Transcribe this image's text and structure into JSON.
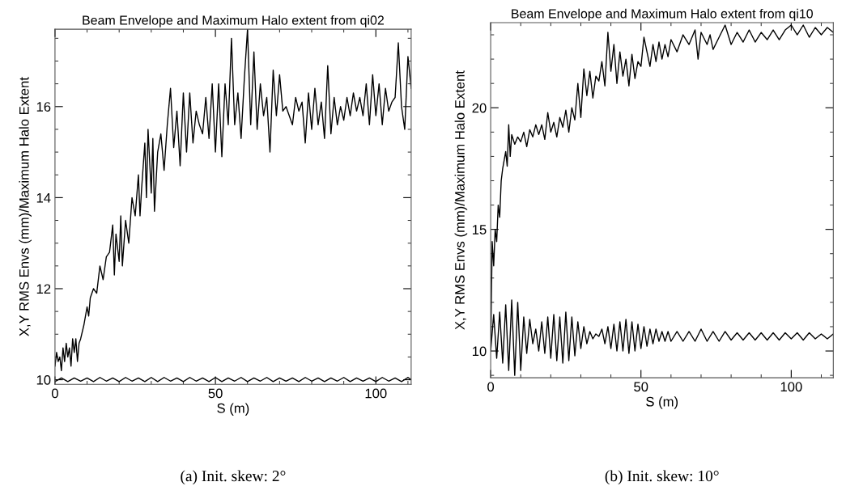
{
  "chart_data": [
    {
      "type": "line",
      "title": "Beam Envelope and Maximum Halo extent from qi02",
      "xlabel": "S (m)",
      "ylabel": "X,Y RMS Envs (mm)/Maximum Halo Extent",
      "xlim": [
        0,
        111
      ],
      "ylim": [
        9.9,
        17.7
      ],
      "xticks": [
        0,
        50,
        100
      ],
      "yticks": [
        10,
        12,
        14,
        16
      ],
      "grid": false,
      "legend": false,
      "marker": "none",
      "line_style": "solid",
      "annotations": [
        "(a) Init. skew: 2°"
      ],
      "series": [
        {
          "color": "#000000",
          "x": [
            0,
            0.5,
            1,
            1.5,
            2,
            2.5,
            3,
            3.5,
            4,
            4.5,
            5,
            5.5,
            6,
            6.5,
            7,
            7.5,
            8,
            9,
            10,
            10.5,
            11,
            12,
            13,
            14,
            15,
            16,
            17,
            18,
            18.5,
            19,
            20,
            20.5,
            21,
            22,
            23,
            24,
            25,
            26,
            26.5,
            27,
            28,
            28.5,
            29,
            30,
            30.5,
            31,
            32,
            33,
            34,
            35,
            36,
            37,
            38,
            39,
            40,
            41,
            42,
            43,
            44,
            45,
            46,
            47,
            48,
            49,
            50,
            51,
            52,
            53,
            54,
            55,
            56,
            57,
            58,
            59,
            60,
            61,
            62,
            63,
            64,
            65,
            66,
            67,
            68,
            69,
            70,
            71,
            72,
            73,
            74,
            75,
            76,
            77,
            78,
            79,
            80,
            81,
            82,
            83,
            84,
            85,
            86,
            87,
            88,
            89,
            90,
            91,
            92,
            93,
            94,
            95,
            96,
            97,
            98,
            99,
            100,
            101,
            102,
            103,
            104,
            105,
            106,
            107,
            108,
            109,
            110,
            111
          ],
          "values": [
            10.3,
            10.6,
            10.4,
            10.5,
            10.2,
            10.7,
            10.4,
            10.8,
            10.5,
            10.7,
            10.3,
            10.9,
            10.6,
            10.9,
            10.4,
            10.8,
            10.9,
            11.2,
            11.6,
            11.4,
            11.8,
            12.0,
            11.9,
            12.5,
            12.2,
            12.7,
            12.8,
            13.4,
            12.3,
            13.2,
            12.6,
            13.6,
            12.5,
            13.5,
            13.0,
            14.0,
            13.6,
            14.5,
            13.6,
            14.2,
            15.2,
            14.0,
            15.5,
            14.1,
            15.3,
            13.7,
            15.0,
            15.4,
            14.6,
            15.6,
            16.4,
            15.1,
            15.9,
            14.7,
            16.3,
            15.0,
            16.3,
            15.2,
            15.9,
            15.6,
            15.4,
            16.2,
            15.3,
            16.5,
            15.0,
            16.5,
            14.9,
            16.5,
            15.6,
            17.5,
            15.6,
            16.3,
            15.3,
            16.6,
            17.7,
            15.6,
            17.2,
            15.5,
            16.5,
            15.8,
            16.2,
            15.0,
            16.8,
            15.8,
            16.7,
            15.9,
            16.0,
            15.8,
            15.6,
            16.2,
            15.9,
            16.1,
            15.2,
            16.3,
            15.5,
            16.4,
            15.6,
            16.1,
            15.3,
            16.9,
            15.4,
            16.2,
            15.6,
            16.0,
            15.7,
            16.2,
            15.8,
            16.3,
            15.9,
            16.2,
            15.8,
            16.5,
            15.6,
            16.7,
            15.8,
            16.5,
            15.6,
            16.4,
            15.9,
            16.1,
            16.2,
            17.4,
            16.0,
            15.5,
            17.1,
            16.4
          ]
        },
        {
          "color": "#000000",
          "x": [
            0,
            2,
            4,
            6,
            8,
            10,
            12,
            14,
            16,
            18,
            20,
            22,
            24,
            26,
            28,
            30,
            32,
            34,
            36,
            38,
            40,
            42,
            44,
            46,
            48,
            50,
            52,
            54,
            56,
            58,
            60,
            62,
            64,
            66,
            68,
            70,
            72,
            74,
            76,
            78,
            80,
            82,
            84,
            86,
            88,
            90,
            92,
            94,
            96,
            98,
            100,
            102,
            104,
            106,
            108,
            110,
            111
          ],
          "values": [
            9.96,
            10.04,
            9.96,
            10.04,
            9.97,
            10.04,
            9.96,
            10.05,
            9.97,
            10.04,
            9.96,
            10.05,
            9.97,
            10.04,
            9.96,
            10.05,
            9.96,
            10.05,
            9.97,
            10.04,
            9.96,
            10.05,
            9.97,
            10.04,
            9.96,
            10.05,
            9.96,
            10.04,
            9.97,
            10.05,
            9.96,
            10.04,
            9.97,
            10.05,
            9.96,
            10.04,
            9.97,
            10.04,
            9.96,
            10.05,
            9.97,
            10.04,
            9.96,
            10.04,
            9.97,
            10.05,
            9.96,
            10.04,
            9.97,
            10.04,
            9.96,
            10.05,
            9.97,
            10.04,
            9.96,
            10.05,
            10.0
          ]
        }
      ]
    },
    {
      "type": "line",
      "title": "Beam Envelope and Maximum Halo extent from qi10",
      "xlabel": "S (m)",
      "ylabel": "X,Y RMS Envs (mm)/Maximum Halo Extent",
      "xlim": [
        0,
        114
      ],
      "ylim": [
        8.9,
        23.5
      ],
      "xticks": [
        0,
        50,
        100
      ],
      "yticks": [
        10,
        15,
        20
      ],
      "grid": false,
      "legend": false,
      "marker": "none",
      "line_style": "solid",
      "annotations": [
        "(b) Init. skew: 10°"
      ],
      "series": [
        {
          "color": "#000000",
          "x": [
            0,
            0.5,
            1,
            1.5,
            2,
            2.5,
            3,
            3.5,
            4,
            5,
            5.5,
            6,
            6.5,
            7,
            8,
            9,
            10,
            11,
            12,
            13,
            14,
            15,
            16,
            17,
            18,
            19,
            20,
            21,
            22,
            23,
            24,
            25,
            26,
            27,
            28,
            29,
            30,
            31,
            32,
            33,
            34,
            35,
            36,
            37,
            38,
            39,
            40,
            41,
            42,
            43,
            44,
            45,
            46,
            47,
            48,
            49,
            50,
            51,
            52,
            53,
            54,
            55,
            56,
            57,
            58,
            59,
            60,
            62,
            64,
            66,
            68,
            69,
            70,
            72,
            73,
            74,
            76,
            78,
            80,
            82,
            84,
            86,
            88,
            90,
            92,
            94,
            96,
            98,
            100,
            102,
            104,
            106,
            108,
            110,
            112,
            114
          ],
          "values": [
            10.0,
            14.5,
            13.5,
            15.0,
            14.5,
            16.0,
            15.5,
            17.0,
            17.5,
            18.2,
            17.6,
            19.3,
            18.0,
            18.9,
            18.5,
            18.8,
            18.6,
            19.0,
            18.4,
            19.1,
            18.8,
            19.3,
            18.9,
            19.3,
            18.7,
            19.8,
            19.0,
            19.4,
            18.8,
            19.6,
            19.2,
            19.9,
            19.0,
            20.0,
            19.5,
            21.0,
            19.6,
            21.6,
            20.5,
            21.5,
            20.4,
            21.3,
            21.1,
            21.9,
            20.9,
            23.1,
            21.5,
            22.6,
            21.0,
            22.3,
            21.3,
            22.0,
            20.9,
            22.2,
            21.2,
            21.9,
            21.7,
            22.9,
            22.3,
            21.7,
            22.6,
            21.9,
            22.7,
            22.0,
            22.6,
            22.1,
            22.8,
            22.3,
            23.0,
            22.6,
            23.2,
            22.0,
            23.1,
            22.6,
            23.0,
            22.4,
            22.9,
            23.4,
            22.6,
            23.1,
            22.7,
            23.2,
            22.7,
            23.1,
            22.8,
            23.2,
            22.8,
            23.2,
            23.4,
            23.0,
            23.4,
            22.9,
            23.3,
            23.0,
            23.3,
            23.1
          ]
        },
        {
          "color": "#000000",
          "x": [
            0,
            1,
            2,
            3,
            4,
            5,
            6,
            7,
            8,
            9,
            10,
            11,
            12,
            13,
            14,
            15,
            16,
            17,
            18,
            19,
            20,
            21,
            22,
            23,
            24,
            25,
            26,
            27,
            28,
            29,
            30,
            31,
            32,
            33,
            34,
            35,
            36,
            37,
            38,
            39,
            40,
            41,
            42,
            43,
            44,
            45,
            46,
            47,
            48,
            49,
            50,
            51,
            52,
            53,
            54,
            55,
            56,
            57,
            58,
            59,
            60,
            62,
            64,
            66,
            68,
            70,
            72,
            74,
            76,
            78,
            80,
            82,
            84,
            86,
            88,
            90,
            92,
            94,
            96,
            98,
            100,
            102,
            104,
            106,
            108,
            110,
            112,
            114
          ],
          "values": [
            10.0,
            11.5,
            9.7,
            11.6,
            9.5,
            11.9,
            9.2,
            12.1,
            9.0,
            12.0,
            9.2,
            11.4,
            9.9,
            11.3,
            10.3,
            10.9,
            10.0,
            11.2,
            9.9,
            11.4,
            9.7,
            11.5,
            9.6,
            11.4,
            9.5,
            11.6,
            9.6,
            11.4,
            9.8,
            11.2,
            10.1,
            11.0,
            10.3,
            10.8,
            10.5,
            10.7,
            10.6,
            10.9,
            10.3,
            11.0,
            10.1,
            11.1,
            10.0,
            11.2,
            10.0,
            11.3,
            9.9,
            11.2,
            10.0,
            11.1,
            10.1,
            11.0,
            10.2,
            10.9,
            10.3,
            10.9,
            10.4,
            10.8,
            10.4,
            10.8,
            10.4,
            10.8,
            10.4,
            10.8,
            10.4,
            10.9,
            10.4,
            10.8,
            10.4,
            10.8,
            10.45,
            10.75,
            10.45,
            10.75,
            10.45,
            10.75,
            10.45,
            10.75,
            10.45,
            10.75,
            10.5,
            10.75,
            10.45,
            10.75,
            10.5,
            10.7,
            10.5,
            10.7
          ]
        }
      ]
    }
  ]
}
